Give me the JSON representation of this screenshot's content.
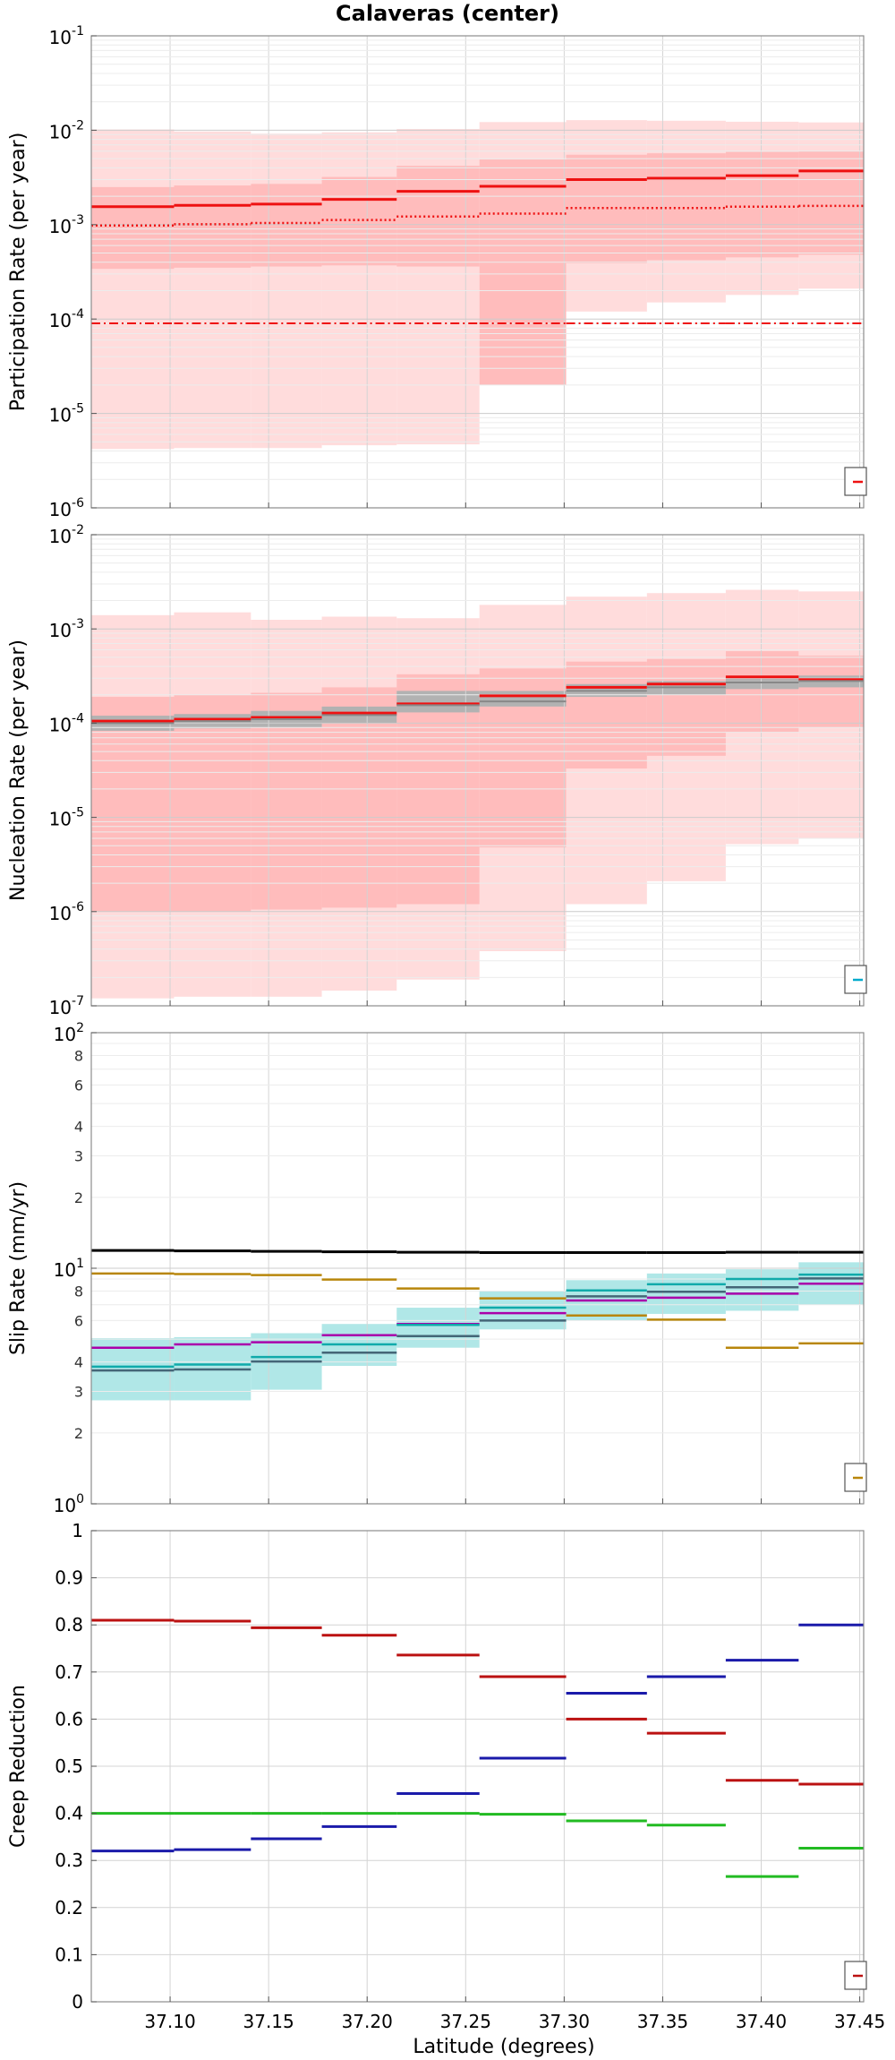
{
  "chart_data": {
    "title": "Calaveras (center)",
    "xlabel": "Latitude (degrees)",
    "xlim": [
      37.06,
      37.452
    ],
    "xticks": [
      "37.10",
      "37.15",
      "37.20",
      "37.25",
      "37.30",
      "37.35",
      "37.40",
      "37.45"
    ],
    "xtick_values": [
      37.1,
      37.15,
      37.2,
      37.25,
      37.3,
      37.35,
      37.4,
      37.45
    ],
    "bins": [
      [
        37.06,
        37.102
      ],
      [
        37.102,
        37.141
      ],
      [
        37.141,
        37.177
      ],
      [
        37.177,
        37.215
      ],
      [
        37.215,
        37.257
      ],
      [
        37.257,
        37.301
      ],
      [
        37.301,
        37.342
      ],
      [
        37.342,
        37.382
      ],
      [
        37.382,
        37.419
      ],
      [
        37.419,
        37.452
      ]
    ],
    "panels": [
      {
        "type": "line",
        "name": "participation",
        "ylabel": "Participation Rate (per year)",
        "yscale": "log",
        "ylim": [
          1e-06,
          0.1
        ],
        "yticks": [
          {
            "base": "10",
            "exp": "-6",
            "v": 1e-06
          },
          {
            "base": "10",
            "exp": "-5",
            "v": 1e-05
          },
          {
            "base": "10",
            "exp": "-4",
            "v": 0.0001
          },
          {
            "base": "10",
            "exp": "-3",
            "v": 0.001
          },
          {
            "base": "10",
            "exp": "-2",
            "v": 0.01
          },
          {
            "base": "10",
            "exp": "-1",
            "v": 0.1
          }
        ],
        "bands": [
          {
            "name": "outer",
            "color": "#ffdcdc",
            "lower": [
              4.2e-06,
              4.3e-06,
              4.3e-06,
              4.6e-06,
              4.7e-06,
              0.00028,
              0.00012,
              0.00015,
              0.00018,
              0.00021
            ],
            "upper": [
              0.0102,
              0.0097,
              0.0092,
              0.0095,
              0.0103,
              0.0122,
              0.0128,
              0.0126,
              0.0123,
              0.0121
            ]
          },
          {
            "name": "inner",
            "color": "#ffbcbc",
            "lower": [
              0.00034,
              0.00035,
              0.00036,
              0.00037,
              0.00036,
              2e-05,
              0.00039,
              0.00042,
              0.00045,
              0.00048
            ],
            "upper": [
              0.0025,
              0.0026,
              0.0027,
              0.0032,
              0.0042,
              0.0049,
              0.0055,
              0.0057,
              0.0059,
              0.006
            ]
          }
        ],
        "series": [
          {
            "name": "mean",
            "color": "#ee1111",
            "style": "solid",
            "width": 3,
            "values": [
              0.00155,
              0.0016,
              0.00165,
              0.00185,
              0.00225,
              0.00255,
              0.003,
              0.0031,
              0.0033,
              0.0037
            ]
          },
          {
            "name": "median",
            "color": "#ee1111",
            "style": "dotted",
            "width": 2.5,
            "values": [
              0.00098,
              0.00101,
              0.00104,
              0.00112,
              0.00122,
              0.00131,
              0.0015,
              0.0015,
              0.00155,
              0.00158
            ]
          },
          {
            "name": "min",
            "color": "#ee1111",
            "style": "dashdot",
            "width": 2,
            "values": [
              9e-05,
              9e-05,
              9e-05,
              9e-05,
              9e-05,
              9e-05,
              9e-05,
              9e-05,
              9e-05,
              9e-05
            ]
          }
        ],
        "legend": {
          "position": "bottom-right",
          "color": "#ee1111"
        }
      },
      {
        "type": "line",
        "name": "nucleation",
        "ylabel": "Nucleation Rate (per year)",
        "yscale": "log",
        "ylim": [
          1e-07,
          0.01
        ],
        "yticks": [
          {
            "base": "10",
            "exp": "-7",
            "v": 1e-07
          },
          {
            "base": "10",
            "exp": "-6",
            "v": 1e-06
          },
          {
            "base": "10",
            "exp": "-5",
            "v": 1e-05
          },
          {
            "base": "10",
            "exp": "-4",
            "v": 0.0001
          },
          {
            "base": "10",
            "exp": "-3",
            "v": 0.001
          },
          {
            "base": "10",
            "exp": "-2",
            "v": 0.01
          }
        ],
        "bands": [
          {
            "name": "outer",
            "color": "#ffdcdc",
            "lower": [
              1.2e-07,
              1.25e-07,
              1.25e-07,
              1.45e-07,
              1.9e-07,
              3.8e-07,
              1.2e-06,
              2.1e-06,
              5.2e-06,
              6e-06
            ],
            "upper": [
              0.0014,
              0.0015,
              0.00125,
              0.00135,
              0.0013,
              0.0018,
              0.0022,
              0.0024,
              0.0026,
              0.0025
            ]
          },
          {
            "name": "inner",
            "color": "#ffbcbc",
            "lower": [
              1e-06,
              1e-06,
              1.05e-06,
              1.1e-06,
              1.2e-06,
              4.8e-06,
              3.3e-05,
              4.5e-05,
              8e-05,
              9e-05
            ],
            "upper": [
              0.00019,
              0.0002,
              0.00021,
              0.00024,
              0.00033,
              0.00038,
              0.00045,
              0.00048,
              0.00058,
              0.00052
            ]
          },
          {
            "name": "gray",
            "color": "#b2b2b2",
            "lower": [
              8.3e-05,
              8.8e-05,
              9e-05,
              0.0001,
              0.00013,
              0.00015,
              0.00019,
              0.0002,
              0.00023,
              0.00024
            ],
            "upper": [
              0.00012,
              0.000125,
              0.000135,
              0.00015,
              0.00022,
              0.00022,
              0.00026,
              0.00028,
              0.00031,
              0.00032
            ]
          }
        ],
        "series": [
          {
            "name": "mean",
            "color": "#ee1111",
            "style": "solid",
            "width": 3,
            "values": [
              0.000105,
              0.00011,
              0.000115,
              0.000128,
              0.00016,
              0.000195,
              0.00024,
              0.00026,
              0.00031,
              0.00029
            ]
          },
          {
            "name": "gray-mean",
            "color": "#888888",
            "style": "solid",
            "width": 2,
            "values": [
              0.0001,
              0.000105,
              0.00011,
              0.000122,
              0.000155,
              0.00017,
              0.00022,
              0.00024,
              0.00027,
              0.00028
            ]
          }
        ],
        "legend": {
          "position": "bottom-right",
          "color": "#00aacc"
        }
      },
      {
        "type": "line",
        "name": "slip",
        "ylabel": "Slip Rate (mm/yr)",
        "yscale": "log",
        "ylim": [
          1,
          100
        ],
        "yticks": [
          {
            "base": "10",
            "exp": "0",
            "v": 1
          },
          {
            "base": "10",
            "exp": "1",
            "v": 10
          },
          {
            "base": "10",
            "exp": "2",
            "v": 100
          }
        ],
        "yminor": [
          {
            "label": "2",
            "v": 2
          },
          {
            "label": "3",
            "v": 3
          },
          {
            "label": "4",
            "v": 4
          },
          {
            "label": "6",
            "v": 6
          },
          {
            "label": "8",
            "v": 8
          },
          {
            "label": "2",
            "v": 20
          },
          {
            "label": "3",
            "v": 30
          },
          {
            "label": "4",
            "v": 40
          },
          {
            "label": "6",
            "v": 60
          },
          {
            "label": "8",
            "v": 80
          }
        ],
        "bands": [
          {
            "name": "cyan",
            "color": "#b0e7e7",
            "lower": [
              2.75,
              2.75,
              3.05,
              3.85,
              4.6,
              5.5,
              6.0,
              6.4,
              6.6,
              7.0
            ],
            "upper": [
              5.05,
              5.1,
              5.3,
              5.8,
              6.8,
              8.0,
              8.9,
              9.5,
              9.9,
              10.6
            ]
          }
        ],
        "series": [
          {
            "name": "black",
            "color": "#000000",
            "style": "solid",
            "width": 3,
            "values": [
              11.9,
              11.85,
              11.8,
              11.75,
              11.7,
              11.65,
              11.65,
              11.65,
              11.7,
              11.7
            ]
          },
          {
            "name": "olive",
            "color": "#b8860b",
            "style": "solid",
            "width": 2.5,
            "values": [
              9.5,
              9.45,
              9.35,
              8.95,
              8.2,
              7.45,
              6.3,
              6.05,
              4.6,
              4.8
            ]
          },
          {
            "name": "purple",
            "color": "#aa00aa",
            "style": "solid",
            "width": 2.5,
            "values": [
              4.6,
              4.75,
              4.85,
              5.2,
              5.8,
              6.45,
              7.3,
              7.5,
              7.8,
              8.6
            ]
          },
          {
            "name": "cyan",
            "color": "#10aaaa",
            "style": "solid",
            "width": 2.5,
            "values": [
              3.82,
              3.9,
              4.2,
              4.75,
              5.75,
              6.8,
              8.05,
              8.55,
              9.0,
              9.4
            ]
          },
          {
            "name": "slate",
            "color": "#446677",
            "style": "solid",
            "width": 2.5,
            "values": [
              3.68,
              3.72,
              4.02,
              4.38,
              5.15,
              6.0,
              7.6,
              7.95,
              8.3,
              9.05
            ]
          }
        ],
        "legend": {
          "position": "bottom-right",
          "color": "#b8860b"
        }
      },
      {
        "type": "line",
        "name": "creep",
        "ylabel": "Creep Reduction",
        "yscale": "linear",
        "ylim": [
          0,
          1
        ],
        "yticks": [
          {
            "label": "0",
            "v": 0
          },
          {
            "label": "0.1",
            "v": 0.1
          },
          {
            "label": "0.2",
            "v": 0.2
          },
          {
            "label": "0.3",
            "v": 0.3
          },
          {
            "label": "0.4",
            "v": 0.4
          },
          {
            "label": "0.5",
            "v": 0.5
          },
          {
            "label": "0.6",
            "v": 0.6
          },
          {
            "label": "0.7",
            "v": 0.7
          },
          {
            "label": "0.8",
            "v": 0.8
          },
          {
            "label": "0.9",
            "v": 0.9
          },
          {
            "label": "1",
            "v": 1
          }
        ],
        "bands": [],
        "series": [
          {
            "name": "red",
            "color": "#bb1111",
            "style": "solid",
            "width": 3,
            "values": [
              0.81,
              0.808,
              0.794,
              0.778,
              0.736,
              0.69,
              0.6,
              0.57,
              0.47,
              0.462
            ]
          },
          {
            "name": "blue",
            "color": "#1a1aaa",
            "style": "solid",
            "width": 3,
            "values": [
              0.32,
              0.323,
              0.346,
              0.372,
              0.442,
              0.517,
              0.655,
              0.69,
              0.725,
              0.8
            ]
          },
          {
            "name": "green",
            "color": "#22bb22",
            "style": "solid",
            "width": 3,
            "values": [
              0.4,
              0.4,
              0.4,
              0.4,
              0.4,
              0.398,
              0.384,
              0.375,
              0.266,
              0.326
            ]
          }
        ],
        "legend": {
          "position": "bottom-right",
          "color": "#bb1111"
        }
      }
    ]
  }
}
